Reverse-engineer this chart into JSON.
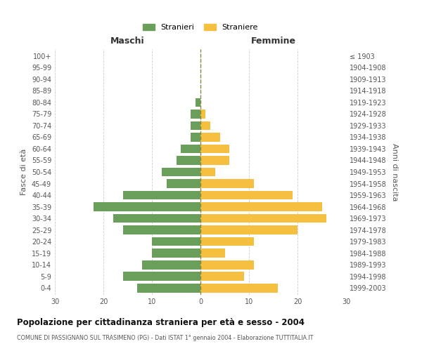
{
  "age_groups": [
    "0-4",
    "5-9",
    "10-14",
    "15-19",
    "20-24",
    "25-29",
    "30-34",
    "35-39",
    "40-44",
    "45-49",
    "50-54",
    "55-59",
    "60-64",
    "65-69",
    "70-74",
    "75-79",
    "80-84",
    "85-89",
    "90-94",
    "95-99",
    "100+"
  ],
  "birth_years": [
    "1999-2003",
    "1994-1998",
    "1989-1993",
    "1984-1988",
    "1979-1983",
    "1974-1978",
    "1969-1973",
    "1964-1968",
    "1959-1963",
    "1954-1958",
    "1949-1953",
    "1944-1948",
    "1939-1943",
    "1934-1938",
    "1929-1933",
    "1924-1928",
    "1919-1923",
    "1914-1918",
    "1909-1913",
    "1904-1908",
    "≤ 1903"
  ],
  "males": [
    13,
    16,
    12,
    10,
    10,
    16,
    18,
    22,
    16,
    7,
    8,
    5,
    4,
    2,
    2,
    2,
    1,
    0,
    0,
    0,
    0
  ],
  "females": [
    16,
    9,
    11,
    5,
    11,
    20,
    26,
    25,
    19,
    11,
    3,
    6,
    6,
    4,
    2,
    1,
    0,
    0,
    0,
    0,
    0
  ],
  "color_male": "#6a9e5b",
  "color_female": "#f5c040",
  "title": "Popolazione per cittadinanza straniera per età e sesso - 2004",
  "subtitle": "COMUNE DI PASSIGNANO SUL TRASIMENO (PG) - Dati ISTAT 1° gennaio 2004 - Elaborazione TUTTITALIA.IT",
  "xlabel_left": "Maschi",
  "xlabel_right": "Femmine",
  "ylabel_left": "Fasce di età",
  "ylabel_right": "Anni di nascita",
  "xlim": 30,
  "xtick_step": 10,
  "legend_stranieri": "Stranieri",
  "legend_straniere": "Straniere",
  "background_color": "#ffffff",
  "grid_color": "#cccccc"
}
